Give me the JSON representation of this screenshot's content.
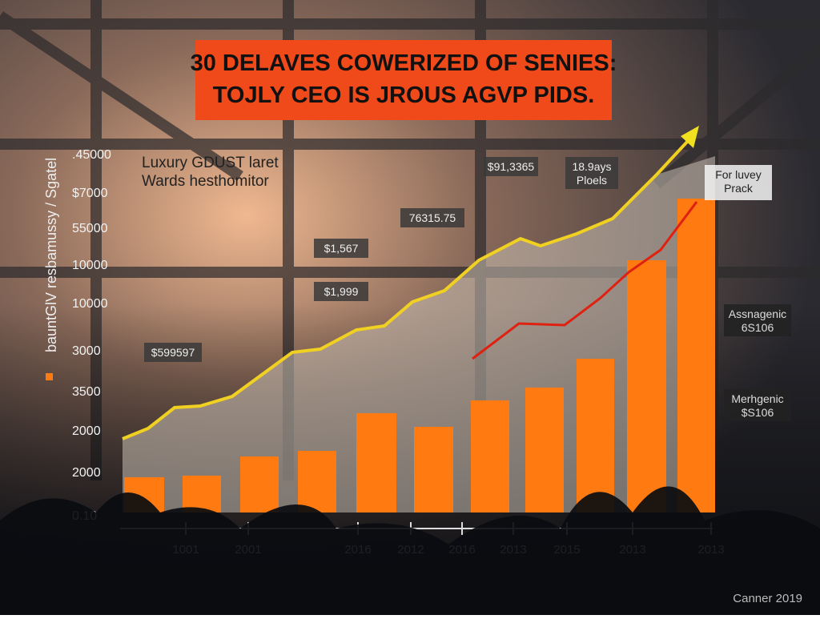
{
  "title": {
    "lines": [
      "30 DELAVES COWERIZED OF SENIES:",
      "TOJLY CEO IS JROUS AGVP PIDS."
    ]
  },
  "subtitle": [
    "Luxury GDUST laret",
    "Wards hesthomitor"
  ],
  "y_axis_title": "bauntGlV resbamussy / Sgatel",
  "y_labels": [
    ".45000",
    "$7000",
    "55000",
    "10000",
    "10000",
    "3000",
    "3500",
    "2000",
    "2000",
    "0.10"
  ],
  "x_labels": [
    "1001",
    "2001",
    "2016",
    "2012",
    "2016",
    "2013",
    "2015",
    "2013",
    "2013"
  ],
  "annotations": [
    "$599597",
    "$1,567",
    "$1,999",
    "76315.75",
    "$91,3365",
    "18.9ays Ploels",
    "For luvey Prack",
    "Assnagenic 6S106",
    "Merhgenic $S106"
  ],
  "footer": "Canner 2019"
}
